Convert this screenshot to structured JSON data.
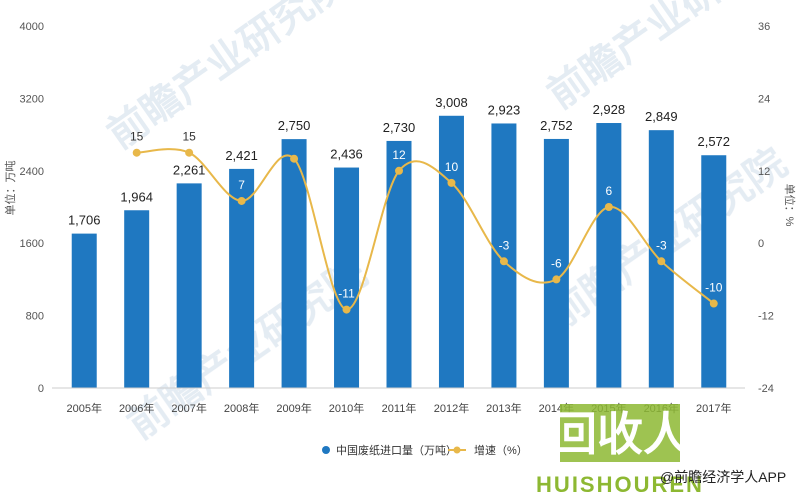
{
  "chart_data": {
    "type": "bar",
    "categories": [
      "2005年",
      "2006年",
      "2007年",
      "2008年",
      "2009年",
      "2010年",
      "2011年",
      "2012年",
      "2013年",
      "2014年",
      "2015年",
      "2016年",
      "2017年"
    ],
    "series": [
      {
        "name": "中国废纸进口量（万吨）",
        "type": "bar",
        "axis": "left",
        "values": [
          1706,
          1964,
          2261,
          2421,
          2750,
          2436,
          2730,
          3008,
          2923,
          2752,
          2928,
          2849,
          2572
        ],
        "color": "#1f78c1"
      },
      {
        "name": "增速（%）",
        "type": "line",
        "axis": "right",
        "values": [
          null,
          15,
          15,
          7,
          14,
          -11,
          12,
          10,
          -3,
          -6,
          6,
          -3,
          -10
        ],
        "labels": [
          "",
          "15",
          "15",
          "7",
          "",
          "-11",
          "12",
          "10",
          "-3",
          "-6",
          "6",
          "-3",
          "-10"
        ],
        "color": "#e8b84a"
      }
    ],
    "ylabel": "单位：万吨",
    "y2label": "单位：%",
    "ylim": [
      0,
      4000
    ],
    "yticks": [
      0,
      800,
      1600,
      2400,
      3200,
      4000
    ],
    "y2lim": [
      -24,
      36
    ],
    "y2ticks": [
      -24,
      -12,
      0,
      12,
      24,
      36
    ],
    "grid": false,
    "legend_position": "bottom"
  },
  "watermarks": {
    "brand1": "前瞻产业研究院",
    "brand2": "回收人",
    "brand2_sub": "HUISHOUREN",
    "source": "@前瞻经济学人APP"
  }
}
